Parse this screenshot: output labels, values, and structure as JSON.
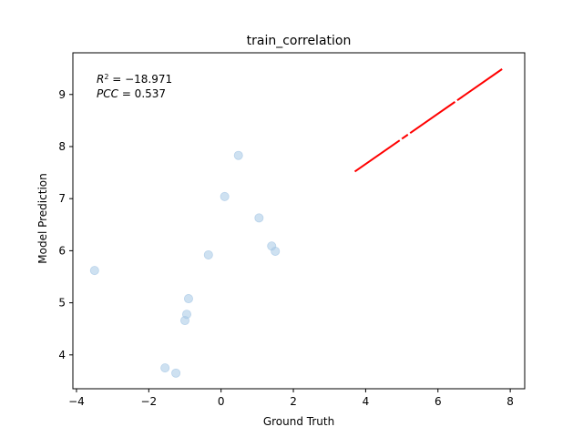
{
  "chart_data": {
    "type": "scatter",
    "title": "train_correlation",
    "xlabel": "Ground Truth",
    "ylabel": "Model Prediction",
    "xlim": [
      -4.1,
      8.4
    ],
    "ylim": [
      3.35,
      9.8
    ],
    "x_ticks": [
      -4,
      -2,
      0,
      2,
      4,
      6,
      8
    ],
    "y_ticks": [
      4,
      5,
      6,
      7,
      8,
      9
    ],
    "grid": false,
    "legend": "none",
    "annotations": [
      {
        "lines": [
          {
            "italic": "R",
            "sup": "2",
            "rest": " = −18.971"
          },
          {
            "italic": "PCC",
            "sup": "",
            "rest": " = 0.537"
          }
        ]
      }
    ],
    "series": [
      {
        "kind": "scatter",
        "color": "#a6c8e6",
        "points": [
          {
            "x": -3.5,
            "y": 5.62
          },
          {
            "x": -1.55,
            "y": 3.75
          },
          {
            "x": -1.25,
            "y": 3.65
          },
          {
            "x": -1.0,
            "y": 4.66
          },
          {
            "x": -0.95,
            "y": 4.78
          },
          {
            "x": -0.9,
            "y": 5.08
          },
          {
            "x": -0.35,
            "y": 5.92
          },
          {
            "x": 0.1,
            "y": 7.04
          },
          {
            "x": 0.48,
            "y": 7.83
          },
          {
            "x": 1.05,
            "y": 6.63
          },
          {
            "x": 1.4,
            "y": 6.09
          },
          {
            "x": 1.5,
            "y": 5.99
          }
        ]
      },
      {
        "kind": "fit-line",
        "color": "#ff0000",
        "x": [
          3.7,
          7.8
        ],
        "y": [
          7.52,
          9.5
        ]
      }
    ]
  }
}
